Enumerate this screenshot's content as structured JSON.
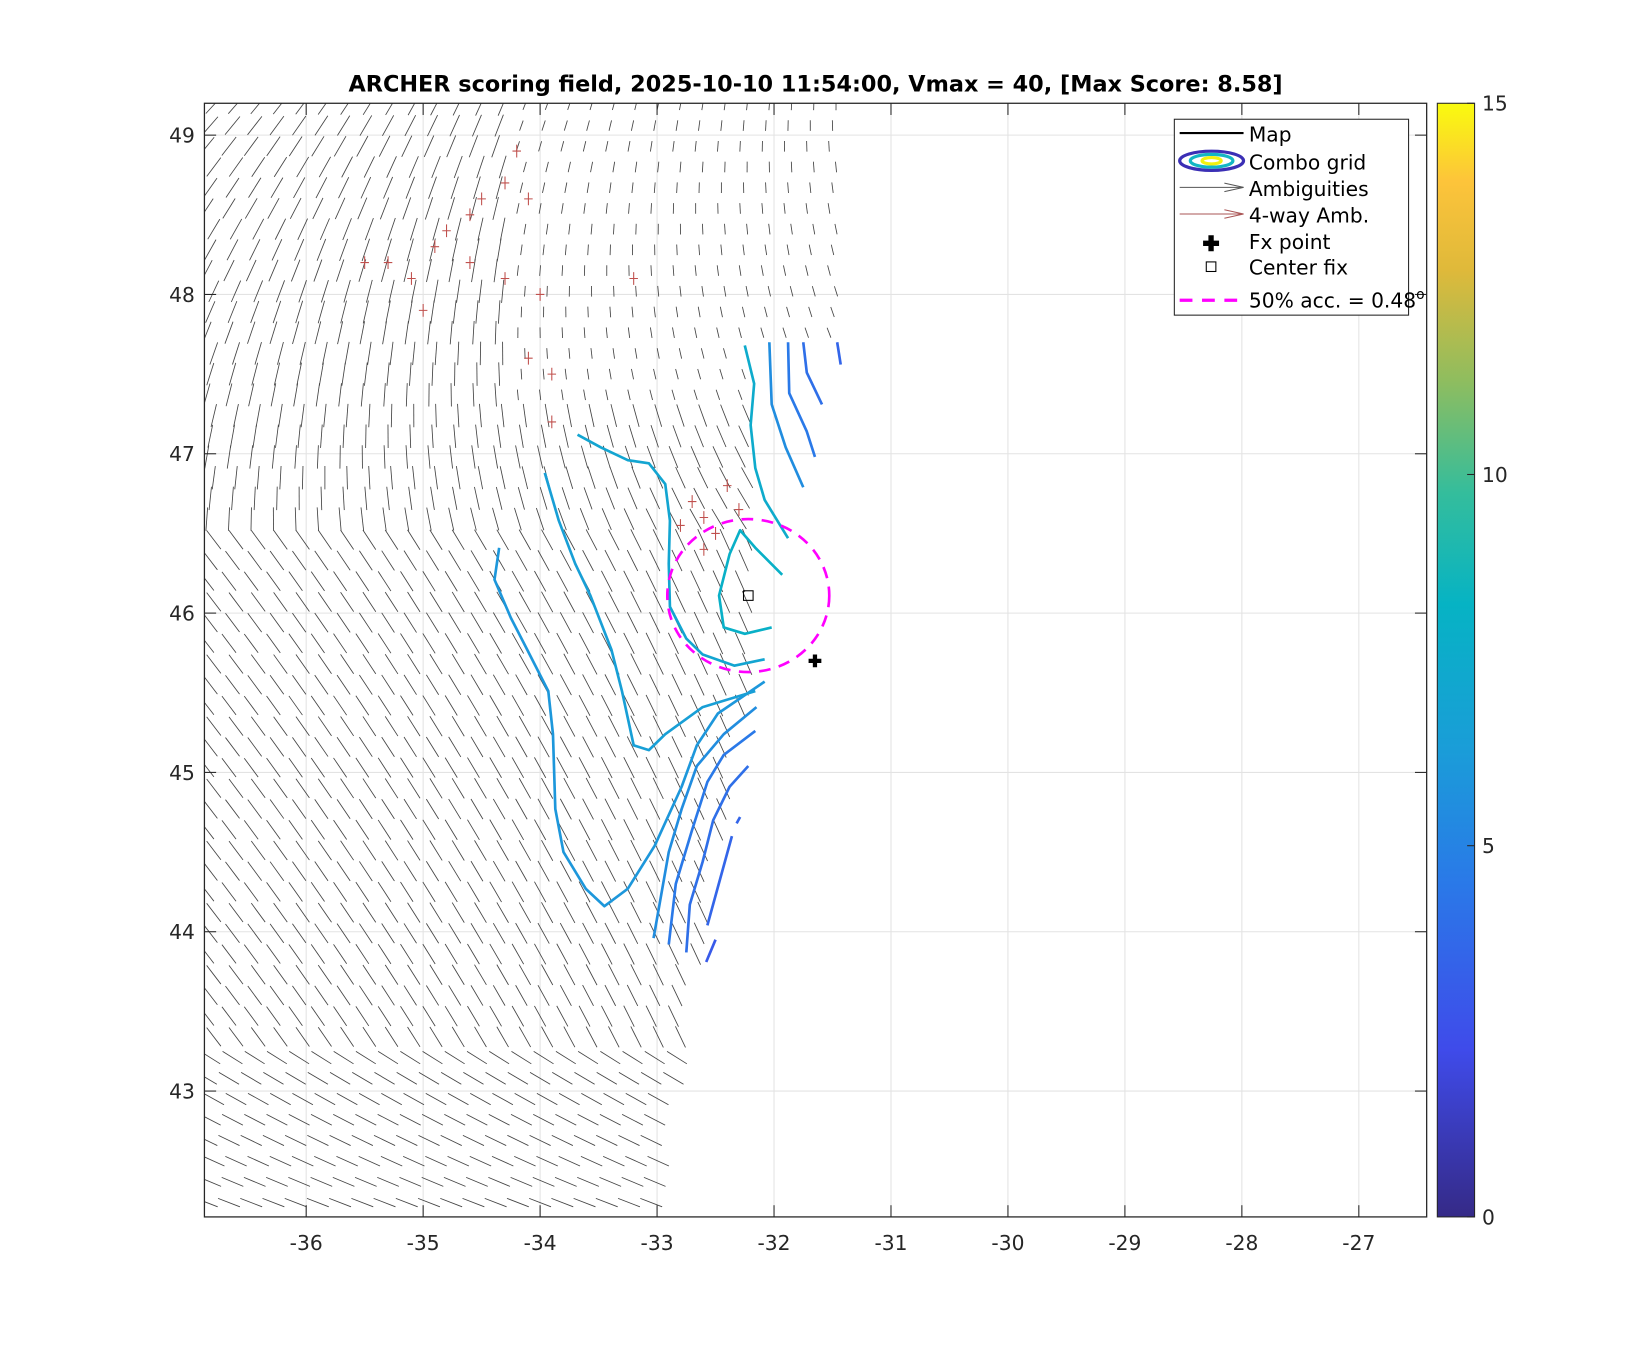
{
  "chart_data": {
    "type": "contour",
    "title": "ARCHER scoring field, 2025-10-10 11:54:00, Vmax = 40, [Max Score: 8.58]",
    "xlabel": "",
    "ylabel": "",
    "xlim": [
      -36.87,
      -26.42
    ],
    "ylim": [
      42.21,
      49.2
    ],
    "grid": true,
    "xticks": [
      "-36",
      "-35",
      "-34",
      "-33",
      "-32",
      "-31",
      "-30",
      "-29",
      "-28",
      "-27"
    ],
    "xtick_values": [
      -36,
      -35,
      -34,
      -33,
      -32,
      -31,
      -30,
      -29,
      -28,
      -27
    ],
    "yticks": [
      "43",
      "44",
      "45",
      "46",
      "47",
      "48",
      "49"
    ],
    "ytick_values": [
      43,
      44,
      45,
      46,
      47,
      48,
      49
    ],
    "colorbar": {
      "range": [
        0,
        15
      ],
      "ticks": [
        "0",
        "5",
        "10",
        "15"
      ],
      "tick_values": [
        0,
        5,
        10,
        15
      ],
      "colormap": "parula"
    },
    "legend": {
      "placement": "top-right",
      "entries": [
        "Map",
        "Combo grid",
        "Ambiguities",
        "4-way Amb.",
        "Fx point",
        "Center fix",
        "50% acc. = 0.48"
      ],
      "degree_mark": "o"
    },
    "contours": [
      {
        "level": 6.0,
        "points": [
          [
            -34.35,
            46.41
          ],
          [
            -34.39,
            46.21
          ],
          [
            -34.25,
            45.97
          ],
          [
            -34.11,
            45.77
          ],
          [
            -33.93,
            45.51
          ],
          [
            -33.89,
            45.24
          ],
          [
            -33.87,
            44.77
          ],
          [
            -33.8,
            44.5
          ],
          [
            -33.61,
            44.27
          ],
          [
            -33.45,
            44.16
          ],
          [
            -33.25,
            44.27
          ],
          [
            -33.02,
            44.54
          ],
          [
            -32.79,
            44.91
          ],
          [
            -32.66,
            45.17
          ],
          [
            -32.48,
            45.37
          ],
          [
            -32.08,
            45.57
          ]
        ]
      },
      {
        "level": 6.5,
        "points": [
          [
            -33.96,
            46.88
          ],
          [
            -33.84,
            46.58
          ],
          [
            -33.7,
            46.31
          ],
          [
            -33.57,
            46.11
          ],
          [
            -33.39,
            45.77
          ],
          [
            -33.3,
            45.51
          ],
          [
            -33.2,
            45.17
          ],
          [
            -33.07,
            45.14
          ],
          [
            -32.93,
            45.24
          ],
          [
            -32.61,
            45.41
          ],
          [
            -32.16,
            45.51
          ]
        ]
      },
      {
        "level": 7.0,
        "points": [
          [
            -33.68,
            47.12
          ],
          [
            -33.48,
            47.04
          ],
          [
            -33.25,
            46.96
          ],
          [
            -33.07,
            46.94
          ],
          [
            -32.93,
            46.81
          ],
          [
            -32.89,
            46.58
          ],
          [
            -32.9,
            46.31
          ],
          [
            -32.89,
            46.04
          ],
          [
            -32.75,
            45.84
          ],
          [
            -32.61,
            45.74
          ],
          [
            -32.34,
            45.67
          ],
          [
            -32.08,
            45.71
          ]
        ]
      },
      {
        "level": 7.5,
        "points": [
          [
            -32.25,
            47.68
          ],
          [
            -32.17,
            47.44
          ],
          [
            -32.2,
            47.18
          ],
          [
            -32.16,
            46.91
          ],
          [
            -32.08,
            46.71
          ],
          [
            -31.88,
            46.47
          ]
        ]
      },
      {
        "level": 8.0,
        "points": [
          [
            -31.93,
            46.24
          ],
          [
            -32.16,
            46.41
          ],
          [
            -32.29,
            46.52
          ],
          [
            -32.38,
            46.37
          ],
          [
            -32.47,
            46.11
          ],
          [
            -32.43,
            45.91
          ],
          [
            -32.25,
            45.87
          ],
          [
            -32.02,
            45.91
          ]
        ]
      },
      {
        "level": 5.5,
        "points": [
          [
            -32.04,
            47.7
          ],
          [
            -32.02,
            47.31
          ],
          [
            -31.9,
            47.04
          ],
          [
            -31.75,
            46.79
          ]
        ]
      },
      {
        "level": 4.5,
        "points": [
          [
            -31.88,
            47.7
          ],
          [
            -31.87,
            47.38
          ],
          [
            -31.72,
            47.14
          ],
          [
            -31.65,
            46.98
          ]
        ]
      },
      {
        "level": 4.0,
        "points": [
          [
            -31.75,
            47.7
          ],
          [
            -31.72,
            47.51
          ],
          [
            -31.59,
            47.31
          ]
        ]
      },
      {
        "level": 3.5,
        "points": [
          [
            -31.46,
            47.7
          ],
          [
            -31.43,
            47.56
          ]
        ]
      },
      {
        "level": 5.5,
        "points": [
          [
            -32.15,
            45.41
          ],
          [
            -32.43,
            45.24
          ],
          [
            -32.66,
            45.04
          ],
          [
            -32.79,
            44.77
          ],
          [
            -32.9,
            44.5
          ],
          [
            -33.03,
            43.96
          ]
        ]
      },
      {
        "level": 4.5,
        "points": [
          [
            -32.16,
            45.26
          ],
          [
            -32.43,
            45.11
          ],
          [
            -32.57,
            44.94
          ],
          [
            -32.7,
            44.64
          ],
          [
            -32.84,
            44.3
          ],
          [
            -32.9,
            43.92
          ]
        ]
      },
      {
        "level": 4.0,
        "points": [
          [
            -32.22,
            45.04
          ],
          [
            -32.38,
            44.91
          ],
          [
            -32.52,
            44.7
          ],
          [
            -32.61,
            44.44
          ],
          [
            -32.72,
            44.17
          ],
          [
            -32.75,
            43.87
          ]
        ]
      },
      {
        "level": 3.5,
        "points": [
          [
            -32.29,
            44.72
          ],
          [
            -32.32,
            44.68
          ]
        ]
      },
      {
        "level": 3.5,
        "points": [
          [
            -32.36,
            44.6
          ],
          [
            -32.57,
            44.04
          ]
        ]
      },
      {
        "level": 3.0,
        "points": [
          [
            -32.5,
            43.95
          ],
          [
            -32.58,
            43.81
          ]
        ]
      }
    ],
    "accuracy_circle": {
      "center": [
        -32.22,
        46.11
      ],
      "radius_deg": 0.48,
      "color": "#ff00ff"
    },
    "fx_point": [
      -31.65,
      45.7
    ],
    "center_fix": [
      -32.22,
      46.11
    ]
  }
}
